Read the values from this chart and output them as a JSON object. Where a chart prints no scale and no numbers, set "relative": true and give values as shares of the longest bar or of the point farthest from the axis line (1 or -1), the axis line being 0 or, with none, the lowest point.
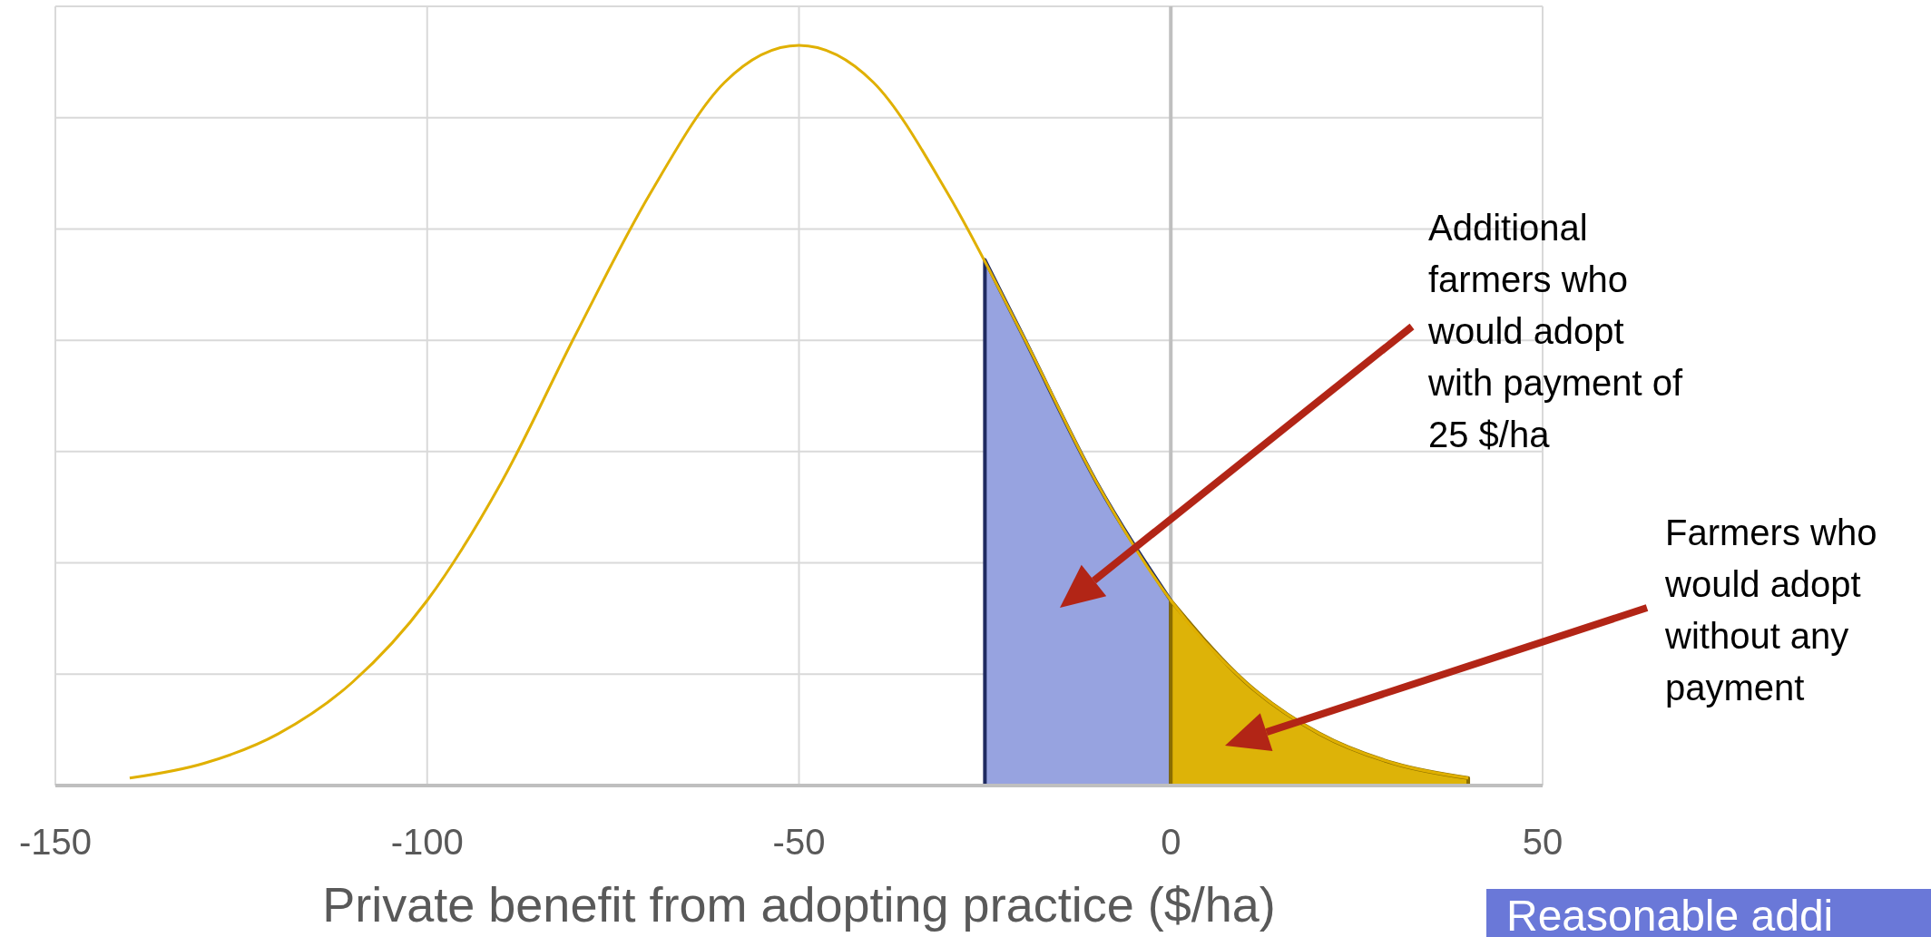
{
  "chart_data": {
    "type": "line",
    "relative": true,
    "xlabel": "Private benefit from adopting practice ($/ha)",
    "xlim": [
      -150,
      50
    ],
    "xticks": [
      -150,
      -100,
      -50,
      0,
      50
    ],
    "grid": true,
    "series": [
      {
        "color": "#e0b000",
        "x": [
          -140,
          -130,
          -120,
          -110,
          -100,
          -90,
          -80,
          -70,
          -60,
          -50,
          -40,
          -30,
          -20,
          -10,
          0,
          10,
          20,
          30,
          40
        ],
        "values": [
          0.01,
          0.03,
          0.07,
          0.14,
          0.25,
          0.41,
          0.61,
          0.8,
          0.95,
          1,
          0.95,
          0.8,
          0.61,
          0.41,
          0.25,
          0.14,
          0.07,
          0.03,
          0.01
        ]
      },
      {
        "type": "area",
        "color": "#97a3e0",
        "x": [
          -25,
          -20,
          -10,
          0
        ],
        "values": [
          0.71,
          0.61,
          0.41,
          0.25
        ]
      },
      {
        "type": "area",
        "color": "#ddb308",
        "x": [
          0,
          10,
          20,
          30,
          40
        ],
        "values": [
          0.25,
          0.14,
          0.07,
          0.03,
          0.01
        ]
      }
    ],
    "ref_lines": [
      {
        "axis": "x",
        "value": 0,
        "color": "#bfbfbf"
      }
    ],
    "annotations": [
      "Additional\nfarmers who\nwould adopt\nwith payment of\n25 $/ha",
      "Farmers who\nwould adopt\nwithout any\npayment",
      "Reasonable addi"
    ]
  }
}
